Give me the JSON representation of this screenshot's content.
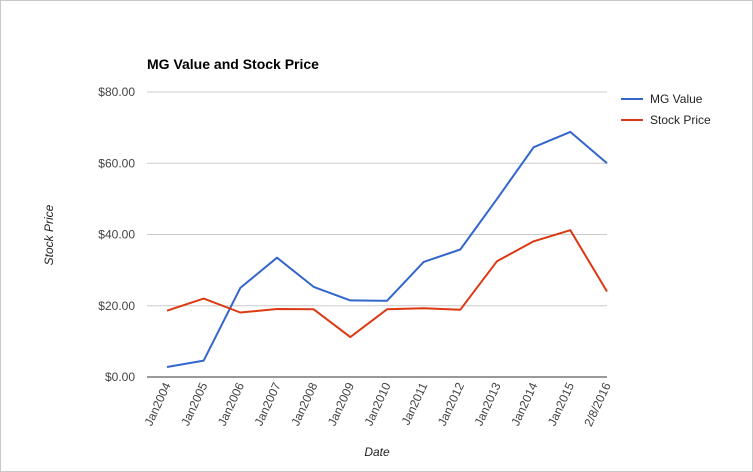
{
  "chart_data": {
    "type": "line",
    "title": "MG Value and Stock Price",
    "xlabel": "Date",
    "ylabel": "Stock Price",
    "categories": [
      "Jan2004",
      "Jan2005",
      "Jan2006",
      "Jan2007",
      "Jan2008",
      "Jan2009",
      "Jan2010",
      "Jan2011",
      "Jan2012",
      "Jan2013",
      "Jan2014",
      "Jan2015",
      "2/8/2016"
    ],
    "y_ticks": [
      "$0.00",
      "$20.00",
      "$40.00",
      "$60.00",
      "$80.00"
    ],
    "ylim": [
      0,
      80
    ],
    "grid": true,
    "legend_position": "right",
    "series": [
      {
        "name": "MG Value",
        "color": "#3366cc",
        "values": [
          2.8,
          4.6,
          25.0,
          33.5,
          25.3,
          21.5,
          21.4,
          32.3,
          35.8,
          50.0,
          64.5,
          68.8,
          60.0
        ]
      },
      {
        "name": "Stock Price",
        "color": "#dc3912",
        "values": [
          18.6,
          22.0,
          18.1,
          19.1,
          19.0,
          11.2,
          19.0,
          19.3,
          18.9,
          32.5,
          38.1,
          41.2,
          24.0
        ]
      }
    ]
  }
}
